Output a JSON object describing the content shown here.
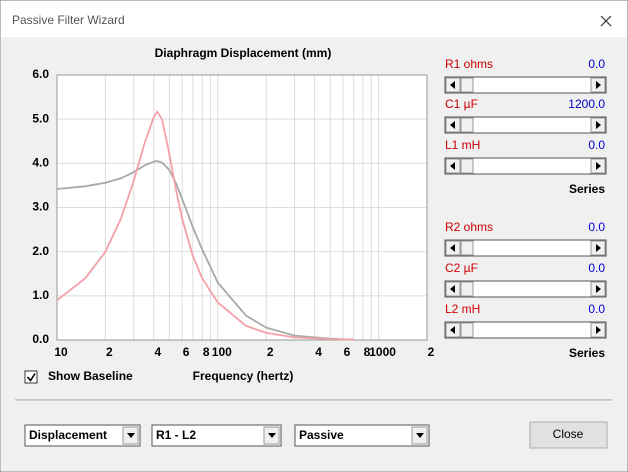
{
  "window": {
    "title": "Passive Filter Wizard"
  },
  "chart_data": {
    "type": "line",
    "title": "Diaphragm Displacement (mm)",
    "xlabel": "Frequency (hertz)",
    "xscale": "log",
    "xlim": [
      10,
      2000
    ],
    "ylim": [
      0,
      6
    ],
    "xticks": [
      10,
      {
        "value": 20,
        "label": "2"
      },
      {
        "value": 40,
        "label": "4"
      },
      {
        "value": 60,
        "label": "6"
      },
      {
        "value": 80,
        "label": "8"
      },
      100,
      {
        "value": 200,
        "label": "2"
      },
      {
        "value": 400,
        "label": "4"
      },
      {
        "value": 600,
        "label": "6"
      },
      {
        "value": 800,
        "label": "8"
      },
      1000,
      {
        "value": 2000,
        "label": "2"
      }
    ],
    "xgrid": [
      30,
      50,
      70,
      90,
      300,
      500,
      700,
      900
    ],
    "yticks": [
      {
        "value": 0,
        "label": "0.0"
      },
      {
        "value": 1,
        "label": "1.0"
      },
      {
        "value": 2,
        "label": "2.0"
      },
      {
        "value": 3,
        "label": "3.0"
      },
      {
        "value": 4,
        "label": "4.0"
      },
      {
        "value": 5,
        "label": "5.0"
      },
      {
        "value": 6,
        "label": "6.0"
      }
    ],
    "grid": true,
    "x": [
      10,
      15,
      20,
      25,
      30,
      35,
      40,
      42,
      45,
      50,
      55,
      60,
      70,
      80,
      100,
      150,
      200,
      300,
      500,
      700
    ],
    "series": [
      {
        "color": "#a8a8a8",
        "values": [
          3.42,
          3.48,
          3.56,
          3.66,
          3.8,
          3.95,
          4.04,
          4.05,
          4.02,
          3.85,
          3.55,
          3.2,
          2.55,
          2.05,
          1.3,
          0.55,
          0.28,
          0.1,
          0.03,
          0.01
        ]
      },
      {
        "color": "#f4a0a8",
        "values": [
          0.9,
          1.4,
          2.0,
          2.75,
          3.6,
          4.45,
          5.05,
          5.17,
          5.0,
          4.2,
          3.4,
          2.75,
          1.9,
          1.4,
          0.85,
          0.32,
          0.16,
          0.06,
          0.02,
          0.01
        ]
      }
    ]
  },
  "controls": [
    {
      "label": "R1  ohms",
      "value": "0.0"
    },
    {
      "label": "C1  µF",
      "value": "1200.0"
    },
    {
      "label": "L1  mH",
      "value": "0.0"
    },
    {
      "label": "R2  ohms",
      "value": "0.0"
    },
    {
      "label": "C2  µF",
      "value": "0.0"
    },
    {
      "label": "L2  mH",
      "value": "0.0"
    }
  ],
  "group_labels": [
    "Series",
    "Series"
  ],
  "show_baseline": {
    "label": "Show Baseline",
    "checked": true
  },
  "dropdowns": [
    "Displacement",
    "R1 - L2",
    "Passive"
  ],
  "button": "Close"
}
